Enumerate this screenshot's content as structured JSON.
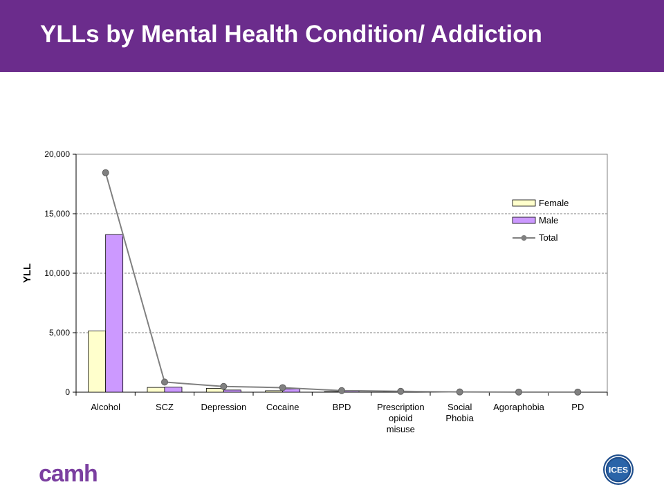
{
  "header": {
    "title": "YLLs by Mental Health Condition/ Addiction"
  },
  "colors": {
    "header_bg": "#6b2c8c",
    "female": "#ffffcc",
    "male": "#cc99ff",
    "total_line": "#808080",
    "total_marker": "#808080"
  },
  "chart_data": {
    "type": "bar",
    "title": "",
    "xlabel": "",
    "ylabel": "YLL",
    "ylim": [
      0,
      20000
    ],
    "yticks": [
      "0",
      "5,000",
      "10,000",
      "15,000",
      "20,000"
    ],
    "ytick_values": [
      0,
      5000,
      10000,
      15000,
      20000
    ],
    "grid": "horizontal dashed",
    "legend_position": "top-right",
    "categories": [
      [
        "Alcohol"
      ],
      [
        "SCZ"
      ],
      [
        "Depression"
      ],
      [
        "Cocaine"
      ],
      [
        "BPD"
      ],
      [
        "Prescription",
        "opioid",
        "misuse"
      ],
      [
        "Social",
        "Phobia"
      ],
      [
        "Agoraphobia"
      ],
      [
        "PD"
      ]
    ],
    "series": [
      {
        "name": "Female",
        "kind": "bar",
        "values": [
          5150,
          400,
          320,
          120,
          50,
          30,
          10,
          5,
          5
        ]
      },
      {
        "name": "Male",
        "kind": "bar",
        "values": [
          13250,
          420,
          180,
          280,
          90,
          50,
          10,
          5,
          5
        ]
      },
      {
        "name": "Total",
        "kind": "line",
        "values": [
          18450,
          850,
          480,
          380,
          130,
          70,
          20,
          10,
          10
        ]
      }
    ]
  },
  "logos": {
    "left": "camh",
    "right": "ICES"
  }
}
